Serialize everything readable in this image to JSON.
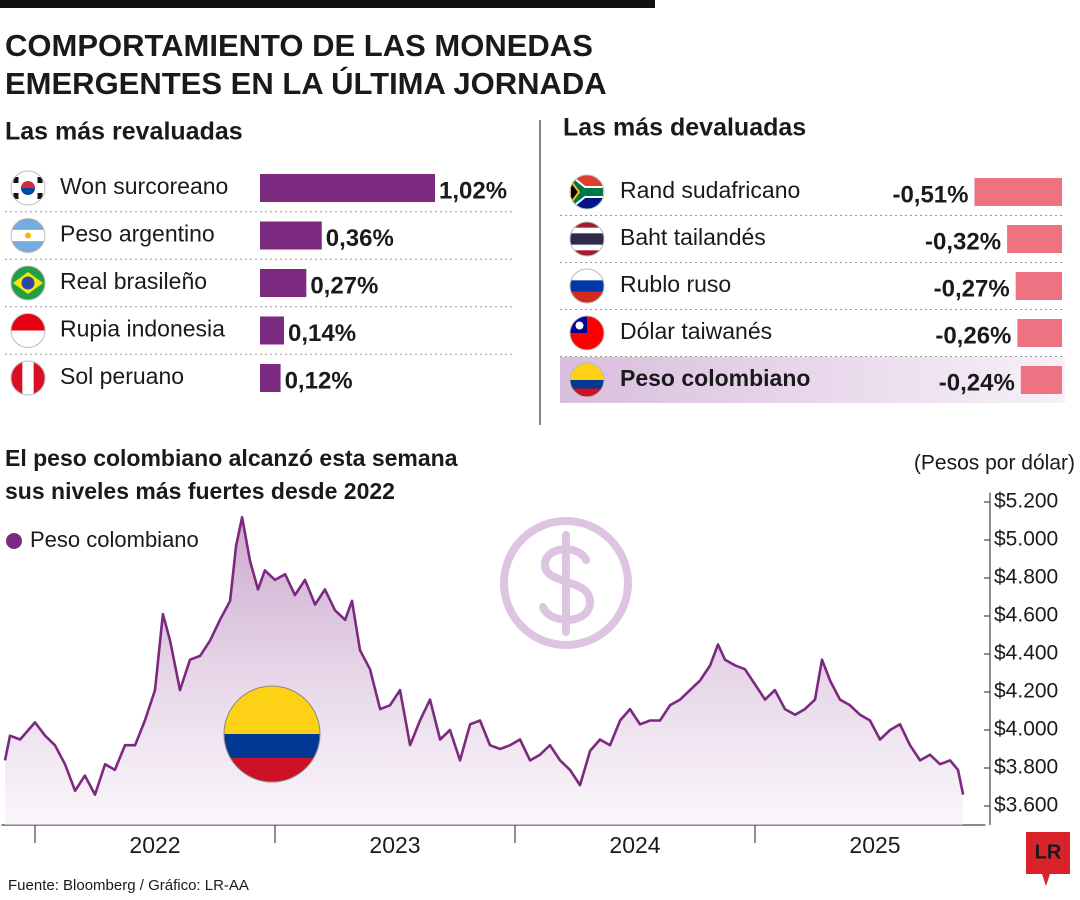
{
  "title": [
    "COMPORTAMIENTO DE LAS MONEDAS",
    "EMERGENTES EN LA ÚLTIMA JORNADA"
  ],
  "chart_data": [
    {
      "type": "bar",
      "title": "Las más revaluadas",
      "categories": [
        "Won surcoreano",
        "Peso argentino",
        "Real brasileño",
        "Rupia indonesia",
        "Sol peruano"
      ],
      "values": [
        1.02,
        0.36,
        0.27,
        0.14,
        0.12
      ],
      "value_labels": [
        "1,02%",
        "0,36%",
        "0,27%",
        "0,14%",
        "0,12%"
      ],
      "color": "#7b2a7f"
    },
    {
      "type": "bar",
      "title": "Las más devaluadas",
      "categories": [
        "Rand sudafricano",
        "Baht tailandés",
        "Rublo ruso",
        "Dólar taiwanés",
        "Peso colombiano"
      ],
      "values": [
        -0.51,
        -0.32,
        -0.27,
        -0.26,
        -0.24
      ],
      "value_labels": [
        "-0,51%",
        "-0,32%",
        "-0,27%",
        "-0,26%",
        "-0,24%"
      ],
      "color": "#ee7282",
      "highlight": 4
    },
    {
      "type": "line",
      "title": [
        "El peso colombiano alcanzó esta semana",
        "sus niveles más fuertes desde 2022"
      ],
      "y_label": "(Pesos por dólar)",
      "x": [
        2021.875,
        2021.896,
        2021.938,
        2022.0,
        2022.042,
        2022.083,
        2022.125,
        2022.167,
        2022.208,
        2022.25,
        2022.292,
        2022.333,
        2022.375,
        2022.417,
        2022.458,
        2022.5,
        2022.533,
        2022.563,
        2022.604,
        2022.646,
        2022.688,
        2022.729,
        2022.771,
        2022.813,
        2022.838,
        2022.863,
        2022.896,
        2022.929,
        2022.958,
        2023.0,
        2023.042,
        2023.083,
        2023.125,
        2023.167,
        2023.208,
        2023.25,
        2023.292,
        2023.321,
        2023.354,
        2023.396,
        2023.438,
        2023.479,
        2023.521,
        2023.563,
        2023.604,
        2023.646,
        2023.688,
        2023.729,
        2023.771,
        2023.813,
        2023.854,
        2023.896,
        2023.938,
        2023.979,
        2024.021,
        2024.063,
        2024.104,
        2024.146,
        2024.188,
        2024.229,
        2024.271,
        2024.313,
        2024.354,
        2024.396,
        2024.438,
        2024.479,
        2024.521,
        2024.563,
        2024.604,
        2024.646,
        2024.688,
        2024.729,
        2024.771,
        2024.813,
        2024.846,
        2024.875,
        2024.917,
        2024.958,
        2025.0,
        2025.042,
        2025.083,
        2025.125,
        2025.167,
        2025.208,
        2025.25,
        2025.279,
        2025.313,
        2025.354,
        2025.396,
        2025.438,
        2025.479,
        2025.521,
        2025.563,
        2025.604,
        2025.646,
        2025.688,
        2025.729,
        2025.771,
        2025.813,
        2025.846,
        2025.867
      ],
      "series": [
        {
          "name": "Peso colombiano",
          "color": "#7b2a7f",
          "values": [
            3840,
            3970,
            3950,
            4040,
            3970,
            3920,
            3820,
            3680,
            3760,
            3660,
            3820,
            3790,
            3920,
            3920,
            4050,
            4210,
            4610,
            4470,
            4210,
            4370,
            4390,
            4470,
            4580,
            4680,
            4970,
            5120,
            4890,
            4740,
            4840,
            4790,
            4820,
            4710,
            4790,
            4660,
            4740,
            4630,
            4580,
            4680,
            4420,
            4320,
            4110,
            4130,
            4210,
            3920,
            4050,
            4160,
            3950,
            4000,
            3840,
            4030,
            4050,
            3920,
            3900,
            3920,
            3950,
            3840,
            3870,
            3920,
            3840,
            3790,
            3710,
            3890,
            3950,
            3920,
            4050,
            4110,
            4030,
            4050,
            4050,
            4130,
            4160,
            4210,
            4260,
            4340,
            4450,
            4370,
            4340,
            4320,
            4240,
            4160,
            4210,
            4110,
            4080,
            4110,
            4160,
            4370,
            4260,
            4160,
            4130,
            4080,
            4050,
            3950,
            4000,
            4030,
            3920,
            3840,
            3870,
            3820,
            3840,
            3790,
            3660
          ]
        }
      ],
      "xlim": [
        2021.86,
        2025.96
      ],
      "xticks": [
        2022,
        2023,
        2024,
        2025
      ],
      "ylim": [
        3500,
        5250
      ],
      "yticks": [
        {
          "value": 3600,
          "label": "$3.600"
        },
        {
          "value": 3800,
          "label": "$3.800"
        },
        {
          "value": 4000,
          "label": "$4.000"
        },
        {
          "value": 4200,
          "label": "$4.200"
        },
        {
          "value": 4400,
          "label": "$4.400"
        },
        {
          "value": 4600,
          "label": "$4.600"
        },
        {
          "value": 4800,
          "label": "$4.800"
        },
        {
          "value": 5000,
          "label": "$5.000"
        },
        {
          "value": 5200,
          "label": "$5.200"
        }
      ],
      "grid": false
    }
  ],
  "source": "Fuente: Bloomberg / Gráfico: LR-AA",
  "logo": "LR"
}
